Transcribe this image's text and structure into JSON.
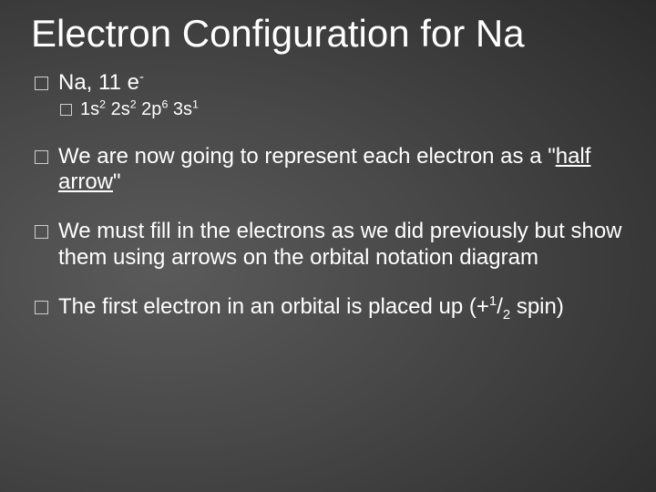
{
  "slide": {
    "title": "Electron Configuration for Na",
    "title_fontsize": 42,
    "text_color": "#ffffff",
    "background_gradient": [
      "#5a5a5a",
      "#484848",
      "#303030",
      "#1f1f1f"
    ],
    "bullet_border_color": "#cfcfcf",
    "body_fontsize_lvl1": 24,
    "body_fontsize_lvl2": 20,
    "items": [
      {
        "text_prefix": "Na, 11 e",
        "text_sup_tail": "-",
        "children": [
          {
            "config": [
              {
                "base": "1s",
                "sup": "2"
              },
              {
                "base": " 2s",
                "sup": "2"
              },
              {
                "base": " 2p",
                "sup": "6"
              },
              {
                "base": " 3s",
                "sup": "1"
              }
            ]
          }
        ]
      },
      {
        "pre": "We are now going to represent each electron as a \"",
        "underlined": "half arrow",
        "post": "\""
      },
      {
        "text": "We must fill in the electrons as we did previously but show them using arrows on the orbital notation diagram"
      },
      {
        "spin_pre": "The first electron in an orbital is placed up (+",
        "spin_num": "1",
        "spin_slash": "/",
        "spin_den": "2",
        "spin_post": " spin)"
      }
    ]
  }
}
